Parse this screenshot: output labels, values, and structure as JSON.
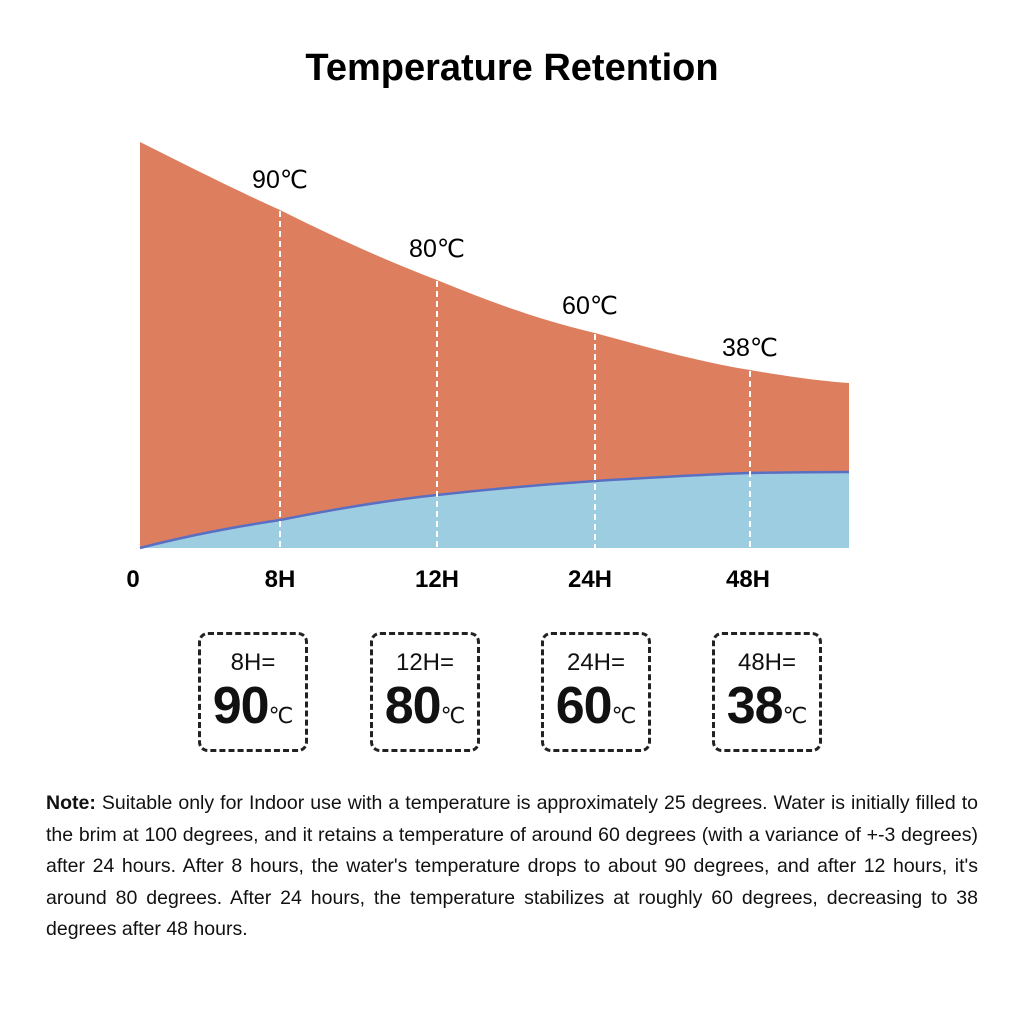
{
  "header": {
    "title": "Temperature Retention"
  },
  "chart": {
    "temperature_labels": [
      "90℃",
      "80℃",
      "60℃",
      "38℃"
    ],
    "time_labels": [
      "0",
      "8H",
      "12H",
      "24H",
      "48H"
    ]
  },
  "boxes": [
    {
      "label": "8H=",
      "value": "90",
      "unit": "℃"
    },
    {
      "label": "12H=",
      "value": "80",
      "unit": "℃"
    },
    {
      "label": "24H=",
      "value": "60",
      "unit": "℃"
    },
    {
      "label": "48H=",
      "value": "38",
      "unit": "℃"
    }
  ],
  "note": {
    "label": "Note:",
    "text": "Suitable only for Indoor use with a temperature is approximately 25 degrees. Water is initially filled to the brim at 100 degrees, and it retains a temperature of around 60 degrees (with a variance of +-3 degrees) after 24 hours. After 8 hours, the water's temperature drops to about 90 degrees, and after 12 hours, it's around 80 degrees. After 24 hours, the temperature stabilizes at roughly 60 degrees, decreasing to 38 degrees after 48 hours."
  }
}
